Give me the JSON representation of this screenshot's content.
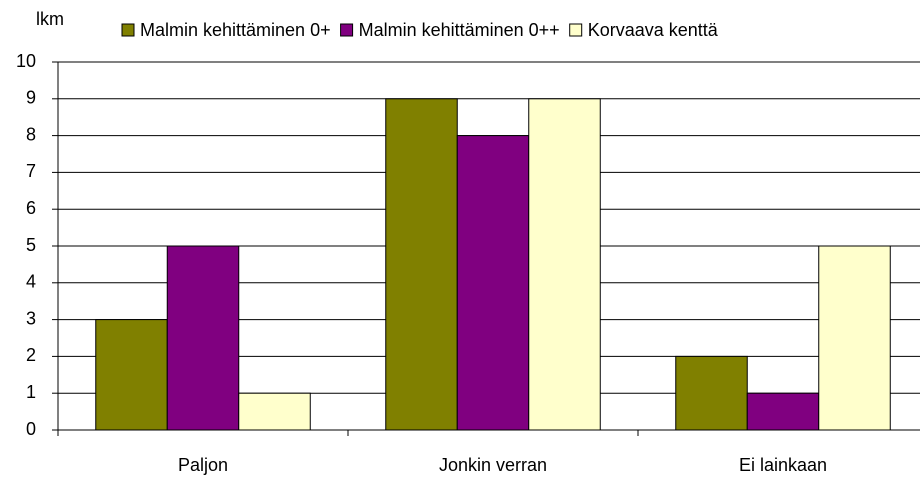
{
  "chart_data": {
    "type": "bar",
    "y_label": "lkm",
    "categories": [
      "Paljon",
      "Jonkin verran",
      "Ei lainkaan"
    ],
    "series": [
      {
        "name": "Malmin kehittäminen 0+",
        "color": "#808000",
        "values": [
          3,
          9,
          2
        ]
      },
      {
        "name": "Malmin kehittäminen 0++",
        "color": "#800080",
        "values": [
          5,
          8,
          1
        ]
      },
      {
        "name": "Korvaava kenttä",
        "color": "#ffffcc",
        "values": [
          1,
          9,
          5
        ]
      }
    ],
    "ylim": [
      0,
      10
    ],
    "yticks": [
      0,
      1,
      2,
      3,
      4,
      5,
      6,
      7,
      8,
      9,
      10
    ],
    "grid": true
  }
}
